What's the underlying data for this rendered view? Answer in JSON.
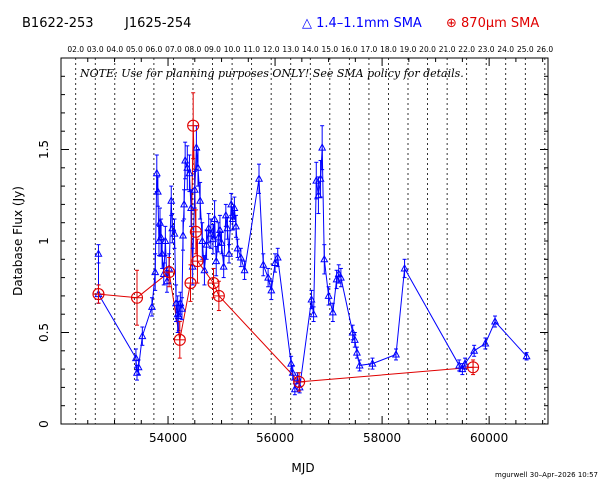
{
  "header": {
    "source_name": "B1622-253",
    "source_alias": "J1625-254",
    "legend_blue": "△ 1.4–1.1mm SMA",
    "legend_red": "⊕ 870µm SMA"
  },
  "note": "NOTE: Use for planning purposes ONLY!  See SMA policy for details.",
  "signature": "mgurwell 30–Apr–2026 10:57",
  "colors": {
    "blue": "#0000ff",
    "red": "#e00000",
    "axis": "#000000"
  },
  "chart_data": {
    "type": "scatter",
    "xlabel": "MJD",
    "ylabel": "Database Flux (Jy)",
    "xlim": [
      52000,
      61100
    ],
    "ylim": [
      0,
      2.0
    ],
    "xticks": [
      54000,
      56000,
      58000,
      60000
    ],
    "xtick_labels": [
      "54000",
      "56000",
      "58000",
      "60000"
    ],
    "yticks": [
      0,
      0.5,
      1,
      1.5
    ],
    "ytick_labels": [
      "0",
      "0.5",
      "1",
      "1.5"
    ],
    "year_labels": [
      "02.0",
      "03.0",
      "04.0",
      "05.0",
      "06.0",
      "07.0",
      "08.0",
      "09.0",
      "10.0",
      "11.0",
      "12.0",
      "13.0",
      "14.0",
      "15.0",
      "16.0",
      "17.0",
      "18.0",
      "19.0",
      "20.0",
      "21.0",
      "22.0",
      "23.0",
      "24.0",
      "25.0",
      "26.0"
    ],
    "year_mjd": [
      52275,
      52640,
      53005,
      53371,
      53736,
      54101,
      54466,
      54832,
      55197,
      55562,
      55927,
      56293,
      56658,
      57023,
      57388,
      57754,
      58119,
      58484,
      58849,
      59215,
      59580,
      59945,
      60310,
      60676,
      61041
    ],
    "series": [
      {
        "name": "1.4–1.1mm SMA",
        "color": "#0000ff",
        "marker": "triangle",
        "points": [
          [
            52700,
            0.93,
            0.05
          ],
          [
            52700,
            0.71,
            0.05
          ],
          [
            53400,
            0.36,
            0.05
          ],
          [
            53420,
            0.28,
            0.04
          ],
          [
            53450,
            0.31,
            0.04
          ],
          [
            53520,
            0.48,
            0.05
          ],
          [
            53700,
            0.64,
            0.05
          ],
          [
            53760,
            0.83,
            0.1
          ],
          [
            53790,
            1.37,
            0.1
          ],
          [
            53810,
            1.27,
            0.08
          ],
          [
            53830,
            1.0,
            0.08
          ],
          [
            53850,
            1.1,
            0.08
          ],
          [
            53870,
            1.02,
            0.1
          ],
          [
            53890,
            0.93,
            0.08
          ],
          [
            53920,
            0.82,
            0.06
          ],
          [
            53950,
            1.0,
            0.08
          ],
          [
            53980,
            0.78,
            0.06
          ],
          [
            54020,
            0.85,
            0.08
          ],
          [
            54060,
            1.22,
            0.08
          ],
          [
            54080,
            1.07,
            0.08
          ],
          [
            54120,
            1.04,
            0.08
          ],
          [
            54150,
            0.66,
            0.1
          ],
          [
            54180,
            0.6,
            0.1
          ],
          [
            54200,
            0.59,
            0.08
          ],
          [
            54230,
            0.66,
            0.06
          ],
          [
            54260,
            0.63,
            0.06
          ],
          [
            54280,
            1.03,
            0.08
          ],
          [
            54300,
            1.2,
            0.08
          ],
          [
            54320,
            1.44,
            0.1
          ],
          [
            54360,
            1.4,
            0.12
          ],
          [
            54400,
            1.37,
            0.1
          ],
          [
            54430,
            1.18,
            0.1
          ],
          [
            54460,
            0.86,
            0.1
          ],
          [
            54500,
            1.28,
            0.1
          ],
          [
            54530,
            1.51,
            0.12
          ],
          [
            54560,
            1.4,
            0.1
          ],
          [
            54600,
            1.22,
            0.1
          ],
          [
            54640,
            1.0,
            0.1
          ],
          [
            54680,
            0.84,
            0.08
          ],
          [
            54720,
            0.98,
            0.08
          ],
          [
            54760,
            1.07,
            0.08
          ],
          [
            54800,
            1.04,
            0.08
          ],
          [
            54840,
            1.01,
            0.08
          ],
          [
            54870,
            1.12,
            0.1
          ],
          [
            54900,
            0.89,
            0.08
          ],
          [
            54940,
            1.02,
            0.08
          ],
          [
            54970,
            1.06,
            0.08
          ],
          [
            55000,
            0.99,
            0.06
          ],
          [
            55040,
            0.86,
            0.06
          ],
          [
            55080,
            1.14,
            0.06
          ],
          [
            55110,
            1.07,
            0.06
          ],
          [
            55140,
            0.93,
            0.05
          ],
          [
            55180,
            1.2,
            0.06
          ],
          [
            55210,
            1.12,
            0.06
          ],
          [
            55240,
            1.18,
            0.06
          ],
          [
            55270,
            1.08,
            0.06
          ],
          [
            55300,
            0.96,
            0.05
          ],
          [
            55360,
            0.91,
            0.05
          ],
          [
            55430,
            0.84,
            0.05
          ],
          [
            55700,
            1.34,
            0.08
          ],
          [
            55780,
            0.87,
            0.06
          ],
          [
            55870,
            0.8,
            0.05
          ],
          [
            55930,
            0.73,
            0.05
          ],
          [
            56000,
            0.88,
            0.05
          ],
          [
            56050,
            0.91,
            0.05
          ],
          [
            56300,
            0.33,
            0.04
          ],
          [
            56330,
            0.28,
            0.04
          ],
          [
            56370,
            0.19,
            0.03
          ],
          [
            56420,
            0.25,
            0.03
          ],
          [
            56460,
            0.2,
            0.03
          ],
          [
            56680,
            0.68,
            0.05
          ],
          [
            56720,
            0.6,
            0.04
          ],
          [
            56770,
            1.33,
            0.1
          ],
          [
            56810,
            1.25,
            0.1
          ],
          [
            56850,
            1.34,
            0.1
          ],
          [
            56880,
            1.51,
            0.12
          ],
          [
            56920,
            0.9,
            0.08
          ],
          [
            57000,
            0.7,
            0.05
          ],
          [
            57080,
            0.61,
            0.05
          ],
          [
            57150,
            0.79,
            0.05
          ],
          [
            57190,
            0.82,
            0.05
          ],
          [
            57230,
            0.8,
            0.05
          ],
          [
            57450,
            0.5,
            0.04
          ],
          [
            57490,
            0.46,
            0.04
          ],
          [
            57530,
            0.39,
            0.03
          ],
          [
            57580,
            0.32,
            0.03
          ],
          [
            57820,
            0.33,
            0.03
          ],
          [
            58260,
            0.38,
            0.03
          ],
          [
            58420,
            0.85,
            0.05
          ],
          [
            59440,
            0.32,
            0.03
          ],
          [
            59500,
            0.3,
            0.03
          ],
          [
            59550,
            0.33,
            0.03
          ],
          [
            59720,
            0.4,
            0.03
          ],
          [
            59930,
            0.44,
            0.03
          ],
          [
            60110,
            0.56,
            0.03
          ],
          [
            60700,
            0.37,
            0.02
          ]
        ]
      },
      {
        "name": "870µm SMA",
        "color": "#e00000",
        "marker": "circle-plus",
        "points": [
          [
            52700,
            0.71,
            0.05
          ],
          [
            53420,
            0.69,
            0.15
          ],
          [
            54020,
            0.83,
            0.08
          ],
          [
            54220,
            0.46,
            0.1
          ],
          [
            54420,
            0.77,
            0.1
          ],
          [
            54470,
            1.63,
            0.18
          ],
          [
            54520,
            1.05,
            0.12
          ],
          [
            54550,
            0.89,
            0.12
          ],
          [
            54850,
            0.77,
            0.08
          ],
          [
            54950,
            0.7,
            0.08
          ],
          [
            56450,
            0.23,
            0.05
          ],
          [
            59700,
            0.31,
            0.04
          ]
        ]
      }
    ]
  }
}
